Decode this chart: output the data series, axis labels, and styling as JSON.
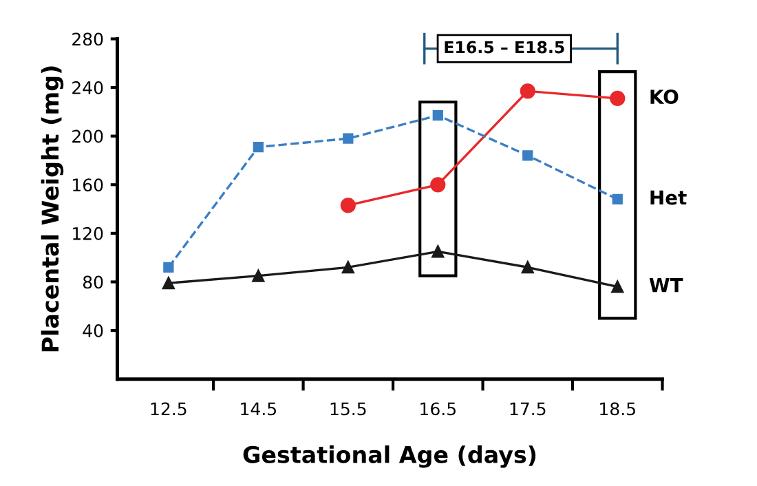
{
  "chart_data": {
    "type": "line",
    "xlabel": "Gestational Age (days)",
    "ylabel": "Placental Weight (mg)",
    "categories": [
      "12.5",
      "14.5",
      "15.5",
      "16.5",
      "17.5",
      "18.5"
    ],
    "series": [
      {
        "name": "KO",
        "color": "#e8282b",
        "marker": "circle",
        "line_style": "solid",
        "values": [
          null,
          null,
          143,
          160,
          237,
          231
        ]
      },
      {
        "name": "Het",
        "color": "#3a7fc4",
        "marker": "square",
        "line_style": "dashed",
        "values": [
          92,
          191,
          198,
          217,
          184,
          148
        ]
      },
      {
        "name": "WT",
        "color": "#1a1a1a",
        "marker": "triangle",
        "line_style": "solid",
        "values": [
          79,
          85,
          92,
          105,
          92,
          76
        ]
      }
    ],
    "ylim": [
      0,
      280
    ],
    "yticks": [
      40,
      80,
      120,
      160,
      200,
      240,
      280
    ],
    "grid": false,
    "legend": false,
    "annotations": [
      "E16.5 – E18.5"
    ]
  }
}
